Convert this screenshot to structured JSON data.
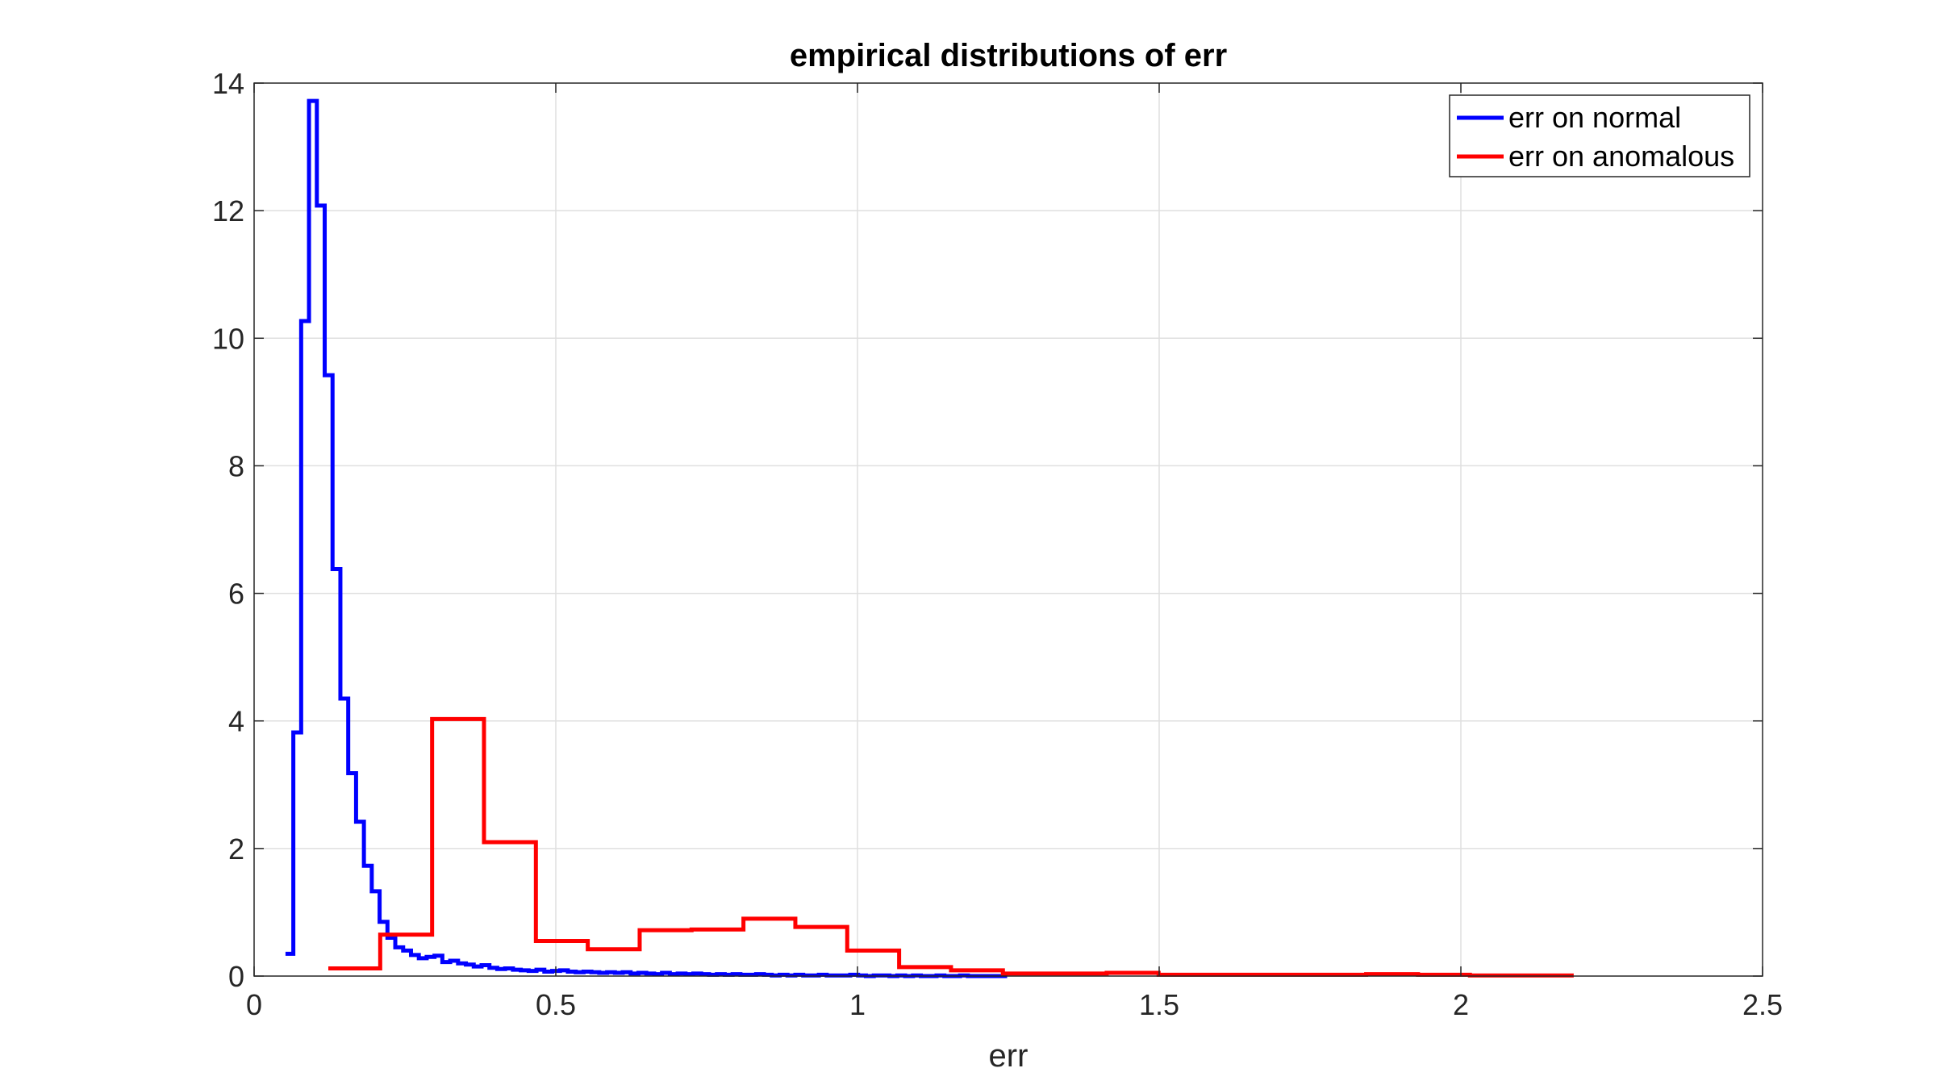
{
  "chart_data": {
    "type": "line",
    "subtype": "stairs-histogram",
    "title": "empirical distributions of err",
    "xlabel": "err",
    "ylabel": "",
    "xlim": [
      0,
      2.5
    ],
    "ylim": [
      0,
      14
    ],
    "xticks": [
      0,
      0.5,
      1,
      1.5,
      2,
      2.5
    ],
    "xtick_labels": [
      "0",
      "0.5",
      "1",
      "1.5",
      "2",
      "2.5"
    ],
    "yticks": [
      0,
      2,
      4,
      6,
      8,
      10,
      12,
      14
    ],
    "ytick_labels": [
      "0",
      "2",
      "4",
      "6",
      "8",
      "10",
      "12",
      "14"
    ],
    "grid": true,
    "legend_position": "top-right",
    "series": [
      {
        "name": "err on normal",
        "color": "#0000ff",
        "edges": [
          0.052,
          0.065,
          0.078,
          0.091,
          0.104,
          0.117,
          0.13,
          0.143,
          0.156,
          0.169,
          0.182,
          0.195,
          0.208,
          0.221,
          0.234,
          0.247,
          0.26,
          0.273,
          0.286,
          0.299,
          0.312,
          0.325,
          0.338,
          0.351,
          0.364,
          0.377,
          0.39,
          0.403,
          0.416,
          0.429,
          0.442,
          0.455,
          0.468,
          0.481,
          0.494,
          0.507,
          0.52,
          0.533,
          0.546,
          0.559,
          0.572,
          0.585,
          0.598,
          0.611,
          0.624,
          0.637,
          0.65,
          0.663,
          0.676,
          0.689,
          0.702,
          0.715,
          0.728,
          0.741,
          0.754,
          0.767,
          0.78,
          0.793,
          0.806,
          0.819,
          0.832,
          0.845,
          0.858,
          0.871,
          0.884,
          0.897,
          0.91,
          0.923,
          0.936,
          0.949,
          0.962,
          0.975,
          0.988,
          1.001,
          1.014,
          1.027,
          1.04,
          1.053,
          1.066,
          1.079,
          1.092,
          1.105,
          1.118,
          1.131,
          1.144,
          1.157,
          1.17,
          1.183,
          1.196,
          1.209,
          1.222,
          1.235,
          1.248
        ],
        "values": [
          0.35,
          3.82,
          10.27,
          13.72,
          12.08,
          9.42,
          6.38,
          4.35,
          3.18,
          2.42,
          1.73,
          1.33,
          0.85,
          0.6,
          0.45,
          0.4,
          0.33,
          0.28,
          0.3,
          0.32,
          0.22,
          0.24,
          0.2,
          0.18,
          0.15,
          0.17,
          0.13,
          0.11,
          0.12,
          0.1,
          0.09,
          0.08,
          0.1,
          0.07,
          0.08,
          0.09,
          0.07,
          0.06,
          0.07,
          0.06,
          0.05,
          0.06,
          0.05,
          0.06,
          0.04,
          0.05,
          0.04,
          0.03,
          0.05,
          0.03,
          0.04,
          0.03,
          0.04,
          0.03,
          0.02,
          0.03,
          0.02,
          0.03,
          0.02,
          0.02,
          0.03,
          0.02,
          0.01,
          0.02,
          0.01,
          0.02,
          0.01,
          0.01,
          0.02,
          0.01,
          0.01,
          0.01,
          0.02,
          0.01,
          0.0,
          0.01,
          0.01,
          0.0,
          0.01,
          0.0,
          0.01,
          0.0,
          0.0,
          0.01,
          0.0,
          0.0,
          0.01,
          0.0,
          0.0,
          0.0,
          0.0,
          0.0
        ]
      },
      {
        "name": "err on anomalous",
        "color": "#ff0000",
        "edges": [
          0.123,
          0.209,
          0.295,
          0.381,
          0.467,
          0.553,
          0.639,
          0.725,
          0.811,
          0.897,
          0.983,
          1.069,
          1.155,
          1.241,
          1.327,
          1.413,
          1.499,
          1.585,
          1.671,
          1.757,
          1.843,
          1.929,
          2.015,
          2.101,
          2.187
        ],
        "values": [
          0.12,
          0.65,
          4.03,
          2.1,
          0.55,
          0.42,
          0.72,
          0.73,
          0.9,
          0.77,
          0.4,
          0.14,
          0.09,
          0.04,
          0.04,
          0.05,
          0.02,
          0.02,
          0.02,
          0.02,
          0.03,
          0.02,
          0.01,
          0.01
        ]
      }
    ]
  }
}
